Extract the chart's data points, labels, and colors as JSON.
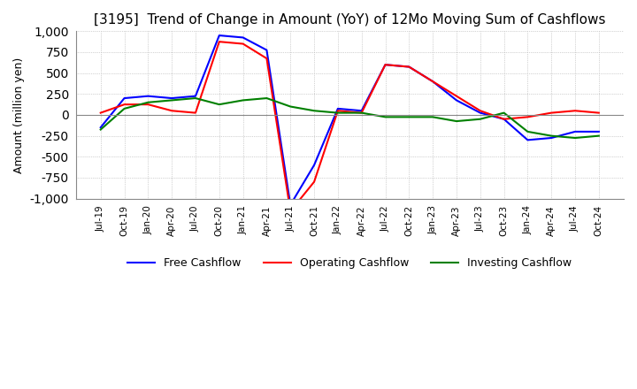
{
  "title": "[3195]  Trend of Change in Amount (YoY) of 12Mo Moving Sum of Cashflows",
  "ylabel": "Amount (million yen)",
  "ylim": [
    -1000,
    1000
  ],
  "yticks": [
    -1000,
    -750,
    -500,
    -250,
    0,
    250,
    500,
    750,
    1000
  ],
  "x_labels": [
    "Jul-19",
    "Oct-19",
    "Jan-20",
    "Apr-20",
    "Jul-20",
    "Oct-20",
    "Jan-21",
    "Apr-21",
    "Jul-21",
    "Oct-21",
    "Jan-22",
    "Apr-22",
    "Jul-22",
    "Oct-22",
    "Jan-23",
    "Apr-23",
    "Jul-23",
    "Oct-23",
    "Jan-24",
    "Apr-24",
    "Jul-24",
    "Oct-24"
  ],
  "operating_cashflow": [
    25,
    125,
    125,
    50,
    25,
    875,
    850,
    675,
    -1150,
    -800,
    50,
    25,
    600,
    575,
    400,
    225,
    50,
    -50,
    -25,
    25,
    50,
    25
  ],
  "investing_cashflow": [
    -175,
    75,
    150,
    175,
    200,
    125,
    175,
    200,
    100,
    50,
    25,
    25,
    -25,
    -25,
    -25,
    -75,
    -50,
    25,
    -200,
    -250,
    -275,
    -250
  ],
  "free_cashflow": [
    -150,
    200,
    225,
    200,
    225,
    950,
    925,
    775,
    -1075,
    -600,
    75,
    50,
    600,
    575,
    400,
    175,
    25,
    -50,
    -300,
    -275,
    -200,
    -200
  ],
  "operating_color": "#ff0000",
  "investing_color": "#008000",
  "free_color": "#0000ff",
  "line_width": 1.5,
  "background_color": "#ffffff",
  "grid_color": "#aaaaaa",
  "title_fontsize": 11
}
